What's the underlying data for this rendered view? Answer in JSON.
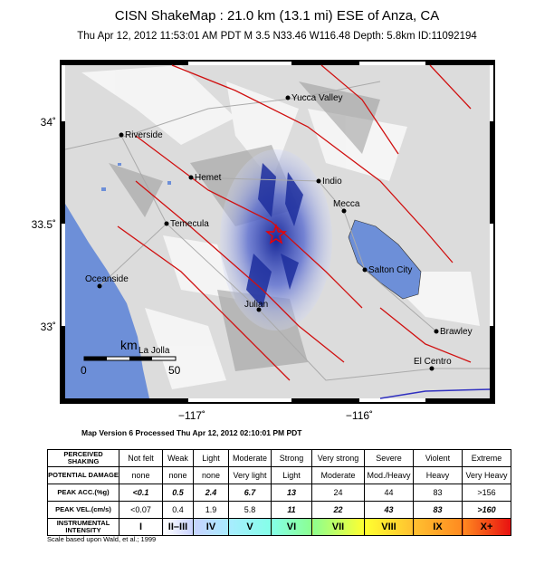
{
  "header": {
    "title": "CISN ShakeMap : 21.0 km (13.1 mi) ESE of Anza, CA",
    "subtitle": "Thu Apr 12, 2012 11:53:01 AM PDT   M 3.5   N33.46 W116.48   Depth: 5.8km   ID:11092194"
  },
  "map": {
    "cities": [
      "Yucca Valley",
      "Riverside",
      "Hemet",
      "Indio",
      "Mecca",
      "Temecula",
      "Salton City",
      "Oceanside",
      "Julian",
      "Brawley",
      "El Centro",
      "La Jolla"
    ],
    "scale": {
      "unit": "km",
      "start": "0",
      "end": "50"
    },
    "lat_labels": [
      "34˚",
      "33.5˚",
      "33˚"
    ],
    "lon_labels": [
      "−117˚",
      "−116˚"
    ],
    "version": "Map Version 6 Processed Thu Apr 12, 2012 02:10:01 PM PDT"
  },
  "legend": {
    "rows": [
      [
        "PERCEIVED SHAKING",
        "Not felt",
        "Weak",
        "Light",
        "Moderate",
        "Strong",
        "Very strong",
        "Severe",
        "Violent",
        "Extreme"
      ],
      [
        "POTENTIAL DAMAGE",
        "none",
        "none",
        "none",
        "Very light",
        "Light",
        "Moderate",
        "Mod./Heavy",
        "Heavy",
        "Very Heavy"
      ],
      [
        "PEAK ACC.(%g)",
        "<0.1",
        "0.5",
        "2.4",
        "6.7",
        "13",
        "24",
        "44",
        "83",
        ">156"
      ],
      [
        "PEAK VEL.(cm/s)",
        "<0.07",
        "0.4",
        "1.9",
        "5.8",
        "11",
        "22",
        "43",
        "83",
        ">160"
      ],
      [
        "INSTRUMENTAL INTENSITY",
        "I",
        "II–III",
        "IV",
        "V",
        "VI",
        "VII",
        "VIII",
        "IX",
        "X+"
      ]
    ],
    "note": "Scale based upon Wald, et al.; 1999"
  }
}
